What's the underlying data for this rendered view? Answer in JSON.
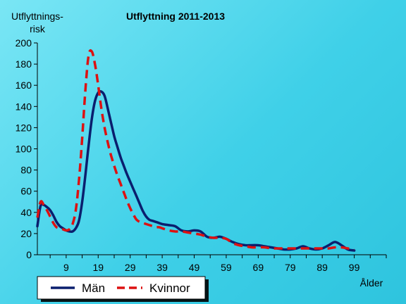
{
  "chart_data": {
    "type": "line",
    "title": "Utflyttning 2011-2013",
    "ylabel_lines": [
      "Utflyttnings-",
      "risk"
    ],
    "xlabel": "Ålder",
    "xlim": [
      0,
      109
    ],
    "ylim": [
      0,
      200
    ],
    "yticks": [
      0,
      20,
      40,
      60,
      80,
      100,
      120,
      140,
      160,
      180,
      200
    ],
    "xticks": [
      9,
      19,
      29,
      39,
      49,
      59,
      69,
      79,
      89,
      99
    ],
    "grid": false,
    "legend_position": "bottom-left",
    "series": [
      {
        "name": "Män",
        "color": "#0a1f6e",
        "style": "solid",
        "x": [
          0,
          1,
          2,
          3,
          4,
          5,
          6,
          7,
          8,
          9,
          10,
          11,
          12,
          13,
          14,
          15,
          16,
          17,
          18,
          19,
          20,
          21,
          22,
          23,
          24,
          25,
          26,
          27,
          28,
          29,
          30,
          31,
          32,
          33,
          34,
          35,
          36,
          37,
          38,
          39,
          41,
          43,
          45,
          47,
          49,
          51,
          53,
          55,
          57,
          59,
          61,
          63,
          65,
          67,
          69,
          71,
          73,
          75,
          77,
          79,
          81,
          83,
          85,
          87,
          89,
          91,
          93,
          95,
          97,
          99
        ],
        "values": [
          27,
          46,
          47,
          45,
          42,
          37,
          31,
          27,
          25,
          23,
          22,
          22,
          25,
          32,
          50,
          75,
          103,
          128,
          145,
          153,
          154,
          150,
          138,
          125,
          112,
          102,
          92,
          84,
          76,
          69,
          62,
          55,
          48,
          41,
          36,
          33,
          32,
          31,
          30,
          29,
          28,
          27,
          23,
          22,
          23,
          22,
          17,
          16,
          17,
          15,
          12,
          10,
          9,
          9,
          9,
          8,
          7,
          6,
          5,
          5,
          6,
          8,
          6,
          5,
          6,
          9,
          12,
          9,
          5,
          4
        ]
      },
      {
        "name": "Kvinnor",
        "color": "#dd1111",
        "style": "dashed",
        "x": [
          0,
          1,
          2,
          3,
          4,
          5,
          6,
          7,
          8,
          9,
          10,
          11,
          12,
          13,
          14,
          15,
          16,
          17,
          18,
          19,
          20,
          21,
          22,
          23,
          24,
          25,
          26,
          27,
          28,
          29,
          30,
          31,
          32,
          33,
          34,
          35,
          36,
          37,
          38,
          39,
          41,
          43,
          45,
          47,
          49,
          51,
          53,
          55,
          57,
          59,
          61,
          63,
          65,
          67,
          69,
          71,
          73,
          75,
          77,
          79,
          81,
          83,
          85,
          87,
          89,
          91,
          93,
          95,
          97,
          99
        ],
        "values": [
          35,
          50,
          47,
          42,
          36,
          30,
          26,
          25,
          24,
          23,
          24,
          29,
          42,
          70,
          110,
          155,
          188,
          192,
          180,
          160,
          138,
          120,
          106,
          94,
          84,
          75,
          67,
          59,
          51,
          44,
          38,
          33,
          31,
          30,
          29,
          28,
          27,
          26,
          26,
          25,
          23,
          22,
          22,
          21,
          20,
          19,
          17,
          16,
          16,
          15,
          11,
          9,
          8,
          7,
          7,
          7,
          6,
          6,
          6,
          6,
          6,
          6,
          6,
          6,
          6,
          6,
          7,
          7,
          6,
          5
        ]
      }
    ]
  }
}
